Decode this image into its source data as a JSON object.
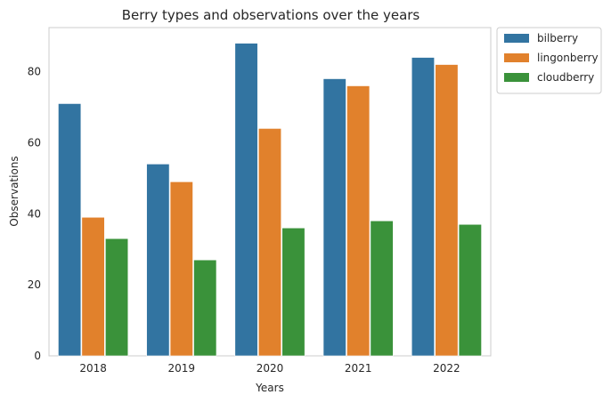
{
  "chart_data": {
    "type": "bar",
    "title": "Berry types and observations over the years",
    "xlabel": "Years",
    "ylabel": "Observations",
    "categories": [
      "2018",
      "2019",
      "2020",
      "2021",
      "2022"
    ],
    "ylim": [
      0,
      92.4
    ],
    "yticks": [
      0,
      20,
      40,
      60,
      80
    ],
    "grid": false,
    "legend_position": "outside top-right",
    "series": [
      {
        "name": "bilberry",
        "color": "#3274a1",
        "values": [
          71,
          54,
          88,
          78,
          84
        ]
      },
      {
        "name": "lingonberry",
        "color": "#e1812c",
        "values": [
          39,
          49,
          64,
          76,
          82
        ]
      },
      {
        "name": "cloudberry",
        "color": "#3a923a",
        "values": [
          33,
          27,
          36,
          38,
          37
        ]
      }
    ]
  }
}
